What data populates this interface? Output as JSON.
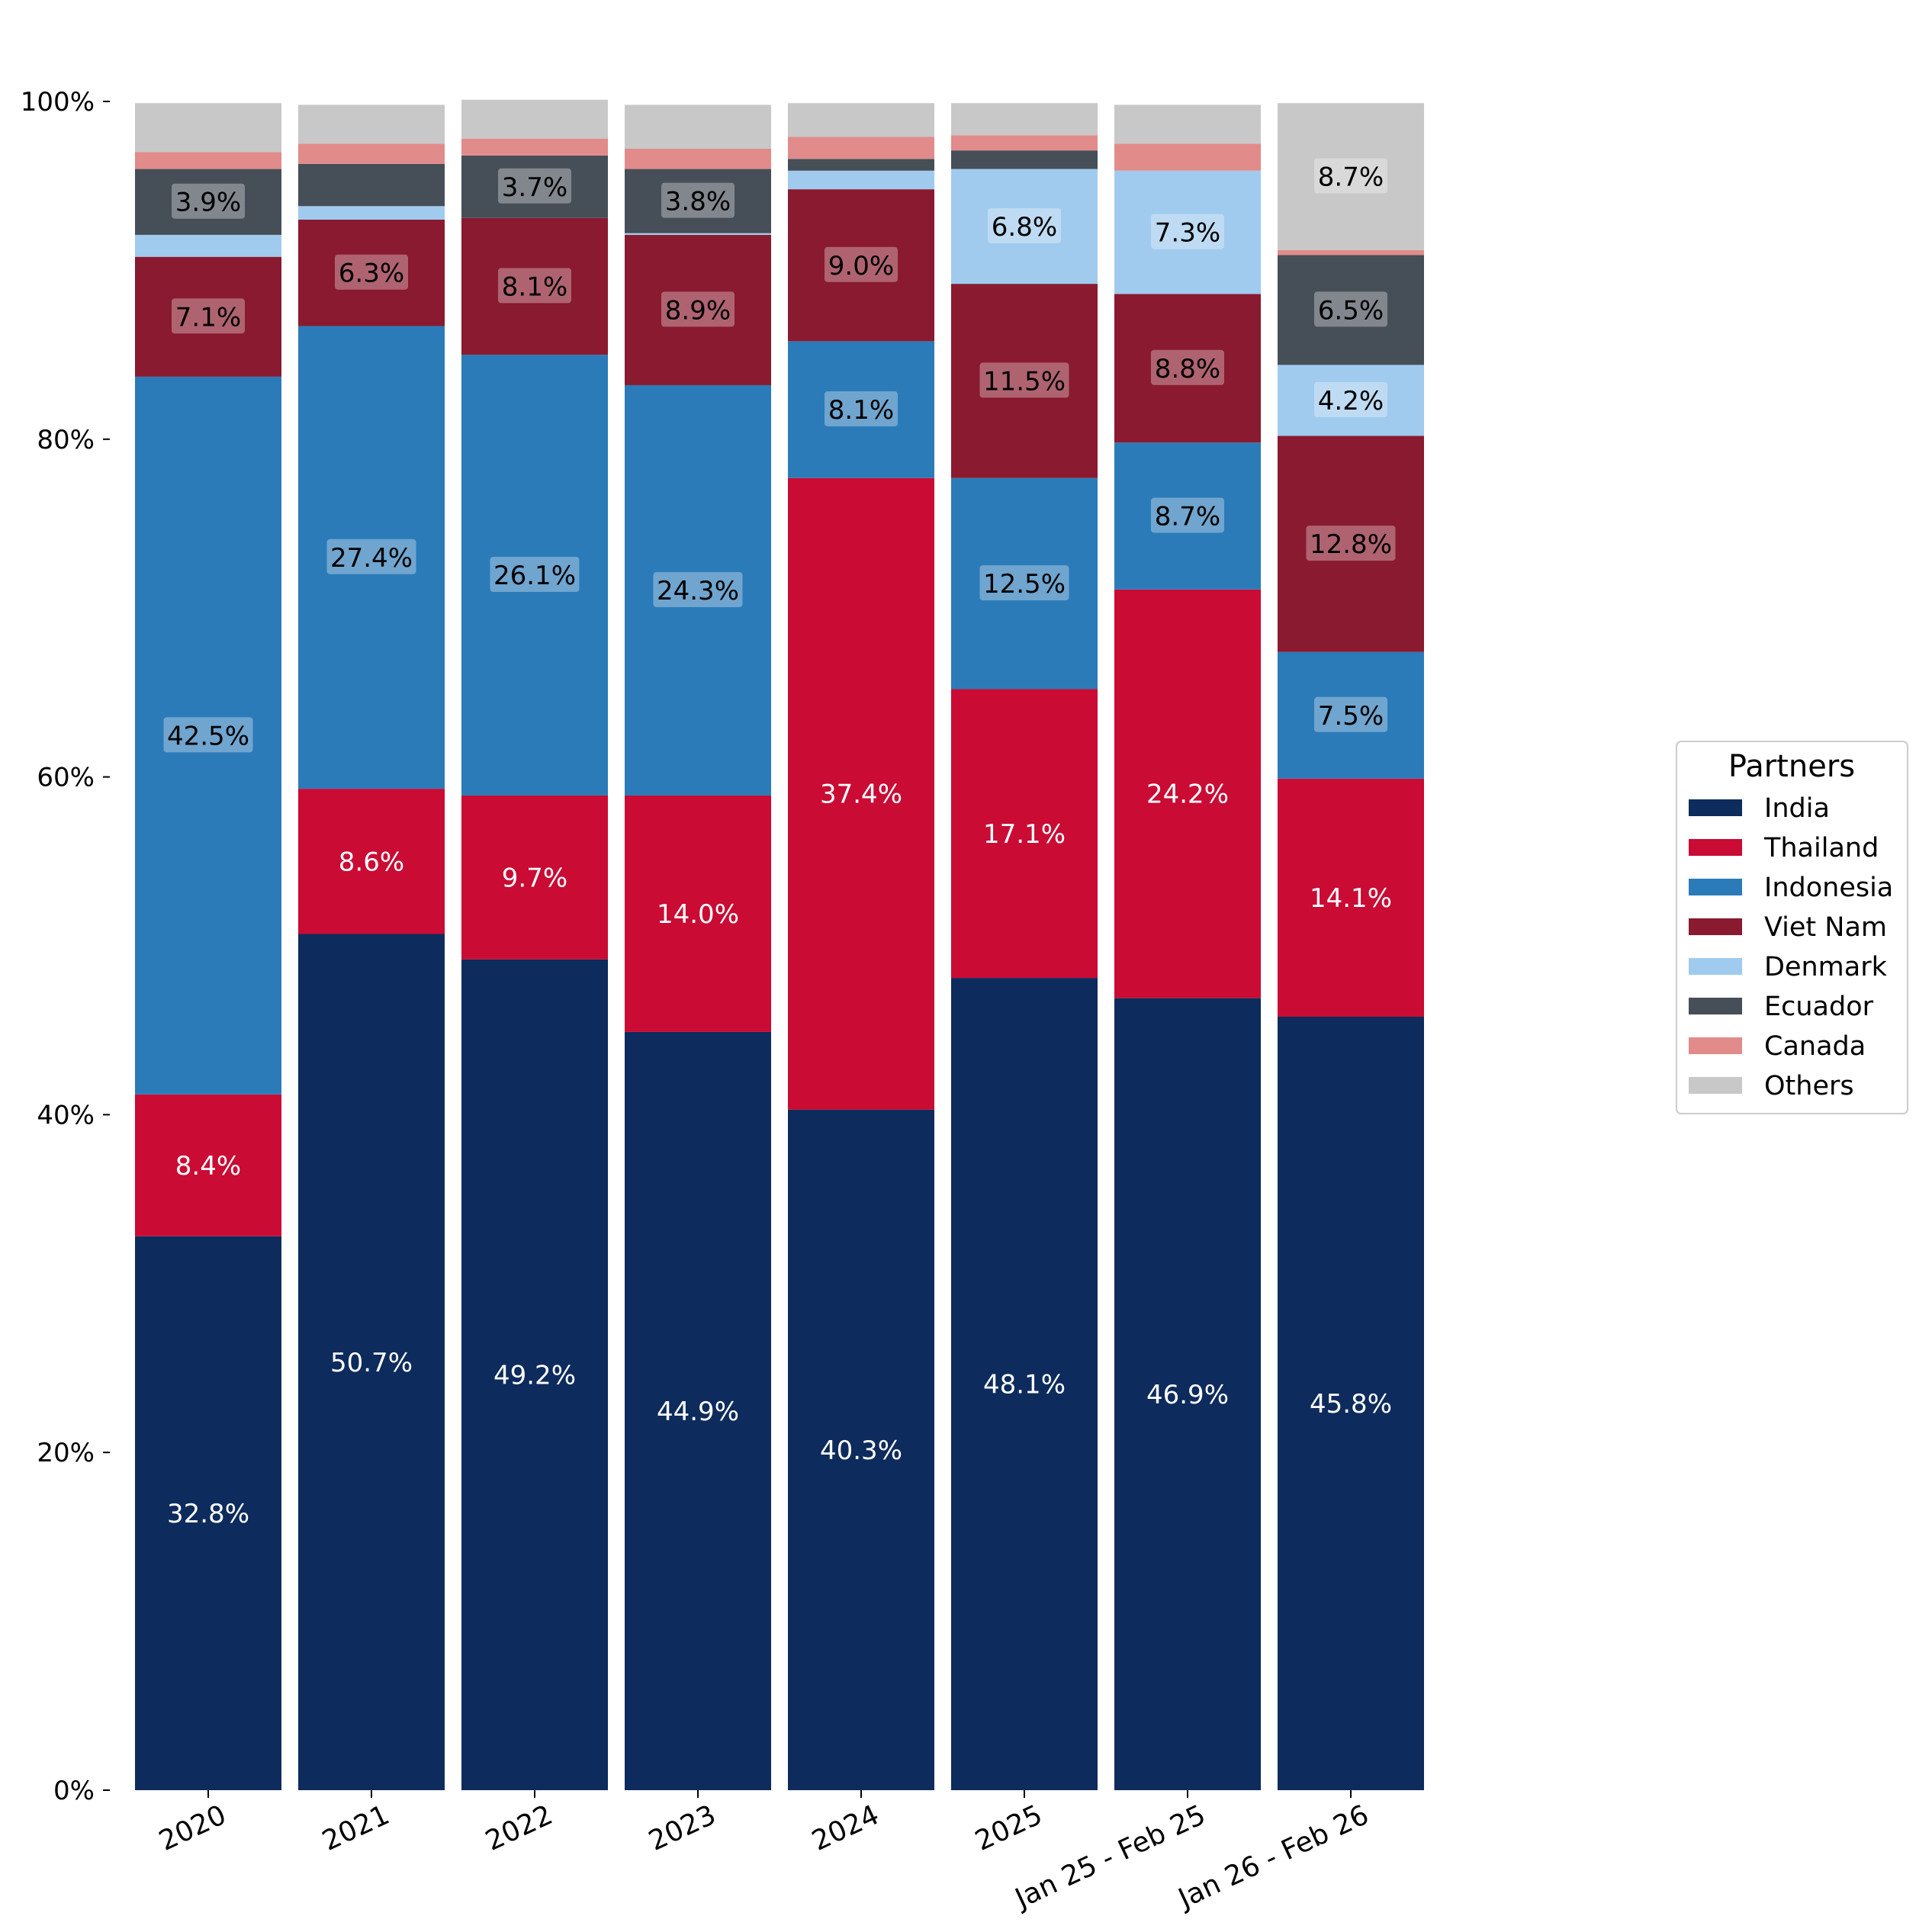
{
  "chart_data": {
    "type": "bar",
    "stacked": true,
    "categories": [
      "2020",
      "2021",
      "2022",
      "2023",
      "2024",
      "2025",
      "Jan 25 - Feb 25",
      "Jan 26 - Feb 26"
    ],
    "yticks": [
      "0%",
      "20%",
      "40%",
      "60%",
      "80%",
      "100%"
    ],
    "ylim": [
      0,
      100
    ],
    "legend": {
      "title": "Partners",
      "placement": "right"
    },
    "series": [
      {
        "name": "India",
        "color": "#0d2b5c",
        "values": [
          32.8,
          50.7,
          49.2,
          44.9,
          40.3,
          48.1,
          46.9,
          45.8
        ]
      },
      {
        "name": "Thailand",
        "color": "#ca0b34",
        "values": [
          8.4,
          8.6,
          9.7,
          14.0,
          37.4,
          17.1,
          24.2,
          14.1
        ]
      },
      {
        "name": "Indonesia",
        "color": "#2b7bb9",
        "values": [
          42.5,
          27.4,
          26.1,
          24.3,
          8.1,
          12.5,
          8.7,
          7.5
        ]
      },
      {
        "name": "Viet Nam",
        "color": "#891a2f",
        "values": [
          7.1,
          6.3,
          8.1,
          8.9,
          9.0,
          11.5,
          8.8,
          12.8
        ]
      },
      {
        "name": "Denmark",
        "color": "#a0cbee",
        "values": [
          1.3,
          0.8,
          0.0,
          0.1,
          1.1,
          6.8,
          7.3,
          4.2
        ]
      },
      {
        "name": "Ecuador",
        "color": "#464e58",
        "values": [
          3.9,
          2.5,
          3.7,
          3.8,
          0.7,
          1.1,
          0.0,
          6.5
        ]
      },
      {
        "name": "Canada",
        "color": "#e18b8b",
        "values": [
          1.0,
          1.2,
          1.0,
          1.2,
          1.3,
          0.9,
          1.6,
          0.3
        ]
      },
      {
        "name": "Others",
        "color": "#c8c8c8",
        "values": [
          2.9,
          2.3,
          2.3,
          2.6,
          2.0,
          1.9,
          2.3,
          8.7
        ]
      }
    ],
    "data_labels": [
      [
        "32.8%",
        "8.4%",
        "42.5%",
        "7.1%",
        "",
        "3.9%",
        "",
        ""
      ],
      [
        "50.7%",
        "8.6%",
        "27.4%",
        "6.3%",
        "",
        "",
        "",
        ""
      ],
      [
        "49.2%",
        "9.7%",
        "26.1%",
        "8.1%",
        "",
        "3.7%",
        "",
        ""
      ],
      [
        "44.9%",
        "14.0%",
        "24.3%",
        "8.9%",
        "",
        "3.8%",
        "",
        ""
      ],
      [
        "40.3%",
        "37.4%",
        "8.1%",
        "9.0%",
        "",
        "",
        "",
        ""
      ],
      [
        "48.1%",
        "17.1%",
        "12.5%",
        "11.5%",
        "6.8%",
        "",
        "",
        ""
      ],
      [
        "46.9%",
        "24.2%",
        "8.7%",
        "8.8%",
        "7.3%",
        "",
        "",
        ""
      ],
      [
        "45.8%",
        "14.1%",
        "7.5%",
        "12.8%",
        "4.2%",
        "6.5%",
        "",
        "8.7%"
      ]
    ],
    "label_colors": [
      "#ffffff",
      "#ffffff",
      "#000000",
      "#000000",
      "#000000",
      "#000000",
      "#000000",
      "#000000"
    ]
  }
}
